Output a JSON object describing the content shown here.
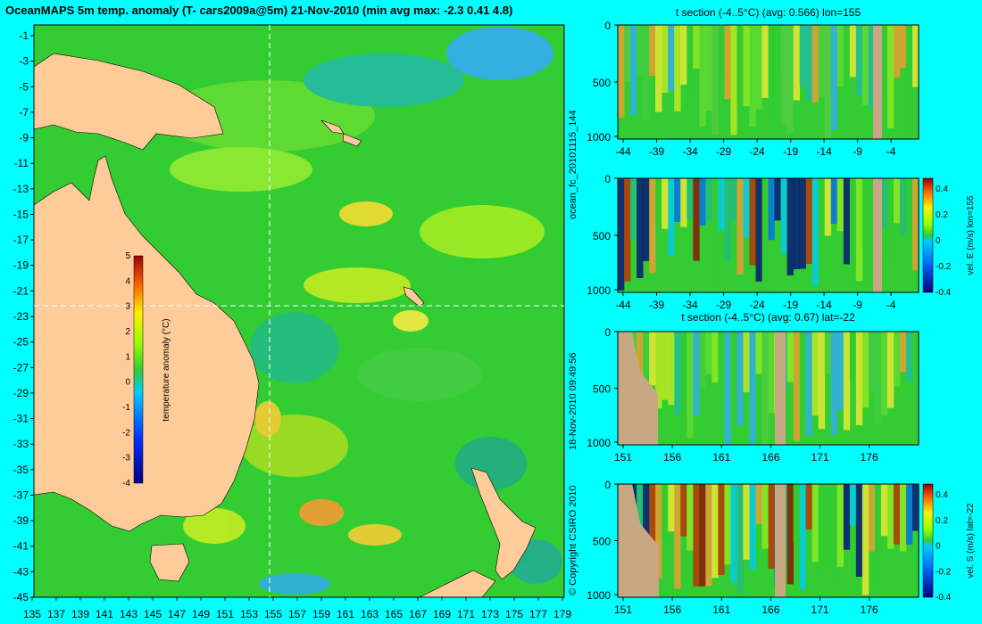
{
  "title": "OceanMAPS 5m temp. anomaly (T- cars2009a@5m) 21-Nov-2010 (min avg max: -2.3 0.41 4.8)",
  "copyright": "© Copyright CSIRO 2010",
  "timestamp": "18-Nov-2010 09:49:56",
  "run_id": "ocean_fc_20101115_144",
  "colors": {
    "background": "#00ffff",
    "land": "#ffcc99",
    "land_section": "#c8a882",
    "ocean": "#33cc33"
  },
  "chart_data": [
    {
      "type": "heatmap",
      "name": "map",
      "x_ticks": [
        "135",
        "137",
        "139",
        "141",
        "143",
        "145",
        "147",
        "149",
        "151",
        "153",
        "155",
        "157",
        "159",
        "161",
        "163",
        "165",
        "167",
        "169",
        "171",
        "173",
        "175",
        "177",
        "179"
      ],
      "y_ticks": [
        "-1",
        "-3",
        "-5",
        "-7",
        "-9",
        "-11",
        "-13",
        "-15",
        "-17",
        "-19",
        "-21",
        "-23",
        "-25",
        "-27",
        "-29",
        "-31",
        "-33",
        "-35",
        "-37",
        "-39",
        "-41",
        "-43",
        "-45"
      ],
      "xlim": [
        135,
        180
      ],
      "ylim": [
        -45,
        0
      ],
      "crosshair": {
        "lon": 155,
        "lat": -22
      },
      "colorbar": {
        "label": "temperature anomaly (°C)",
        "ticks": [
          "5",
          "4",
          "3",
          "2",
          "1",
          "0",
          "-1",
          "-2",
          "-3",
          "-4"
        ],
        "range": [
          -4,
          5
        ]
      }
    },
    {
      "type": "heatmap",
      "name": "t-section-lon",
      "title": "t section (-4..5°C) (avg: 0.566) lon=155",
      "x_ticks": [
        "-44",
        "-39",
        "-34",
        "-29",
        "-24",
        "-19",
        "-14",
        "-9",
        "-4"
      ],
      "y_ticks": [
        "0",
        "500",
        "1000"
      ]
    },
    {
      "type": "heatmap",
      "name": "vel-e-section",
      "x_ticks": [
        "-44",
        "-39",
        "-34",
        "-29",
        "-24",
        "-19",
        "-14",
        "-9",
        "-4"
      ],
      "y_ticks": [
        "0",
        "500",
        "1000"
      ],
      "colorbar": {
        "label": "vel. E (m/s) lon=155",
        "ticks": [
          "0.4",
          "0.2",
          "0",
          "-0.2",
          "-0.4"
        ]
      }
    },
    {
      "type": "heatmap",
      "name": "t-section-lat",
      "title": "t section (-4..5°C) (avg: 0.67) lat=-22",
      "x_ticks": [
        "151",
        "156",
        "161",
        "166",
        "171",
        "176"
      ],
      "y_ticks": [
        "0",
        "500",
        "1000"
      ]
    },
    {
      "type": "heatmap",
      "name": "vel-s-section",
      "x_ticks": [
        "151",
        "156",
        "161",
        "166",
        "171",
        "176"
      ],
      "y_ticks": [
        "0",
        "500",
        "1000"
      ],
      "colorbar": {
        "label": "vel. S (m/s) lat=-22",
        "ticks": [
          "0.4",
          "0.2",
          "0",
          "-0.2",
          "-0.4"
        ]
      }
    }
  ]
}
